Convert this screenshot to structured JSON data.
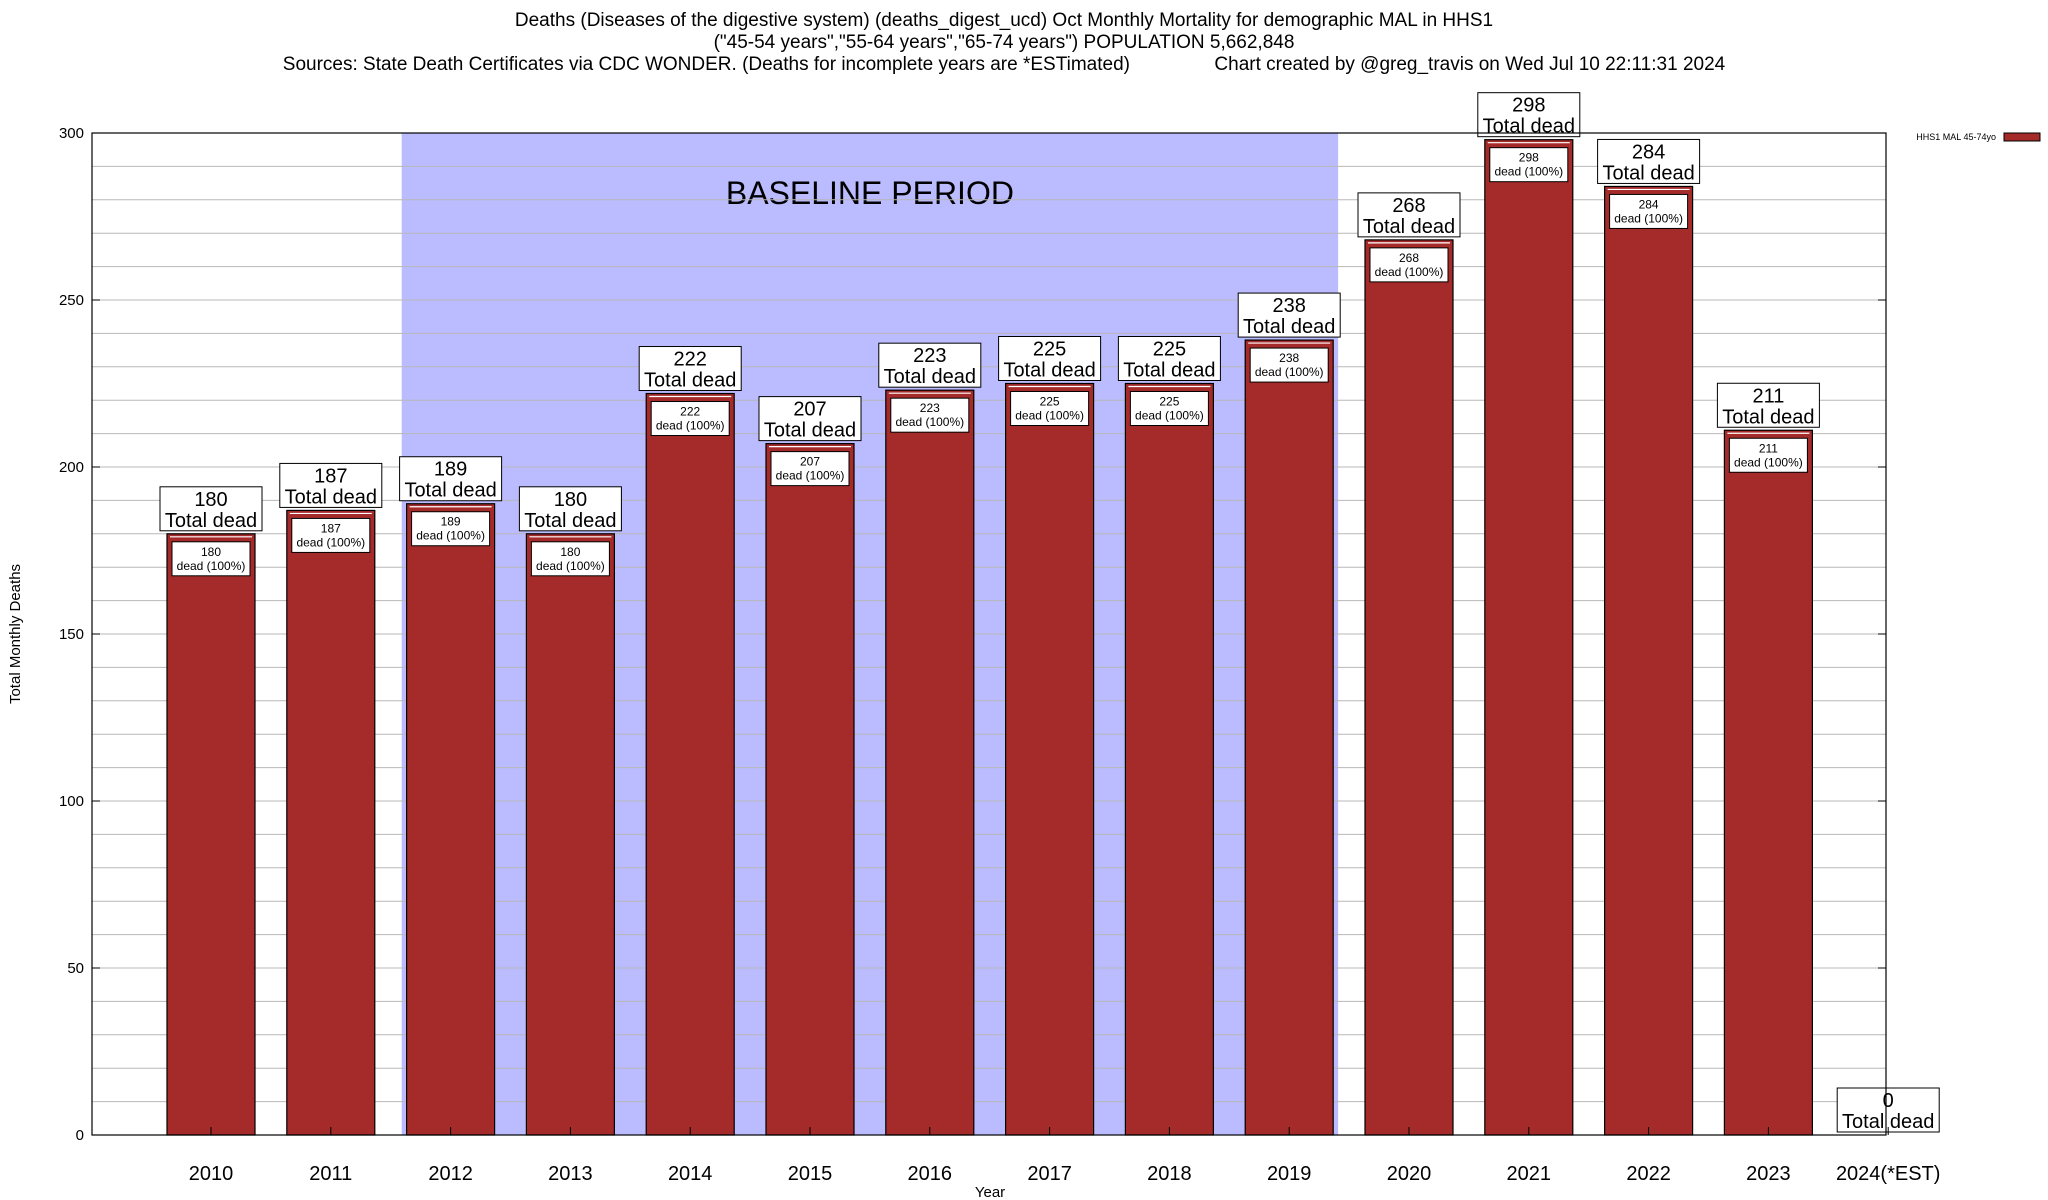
{
  "chart_data": {
    "type": "bar",
    "title_lines": [
      "Deaths (Diseases of the digestive system) (deaths_digest_ucd) Oct Monthly Mortality for demographic MAL in HHS1",
      "(\"45-54 years\",\"55-64 years\",\"65-74 years\") POPULATION 5,662,848",
      "Sources: State Death Certificates via CDC WONDER. (Deaths for incomplete years are *ESTimated)                Chart created by @greg_travis on Wed Jul 10 22:11:31 2024"
    ],
    "xlabel": "Year",
    "ylabel": "Total Monthly Deaths",
    "ylim": [
      0,
      300
    ],
    "yticks": [
      0,
      50,
      100,
      150,
      200,
      250,
      300
    ],
    "grid": true,
    "categories": [
      "2010",
      "2011",
      "2012",
      "2013",
      "2014",
      "2015",
      "2016",
      "2017",
      "2018",
      "2019",
      "2020",
      "2021",
      "2022",
      "2023",
      "2024(*EST)"
    ],
    "series": [
      {
        "name": "HHS1 MAL 45-74yo",
        "color": "#a52a2a",
        "values": [
          180,
          187,
          189,
          180,
          222,
          207,
          223,
          225,
          225,
          238,
          268,
          298,
          284,
          211,
          0
        ]
      }
    ],
    "total_label_text": "Total dead",
    "inner_label_text": "dead (100%)",
    "baseline": {
      "label": "BASELINE PERIOD",
      "from": "2012",
      "to": "2019",
      "color": "#bbbbff"
    },
    "legend_position": "top-right"
  }
}
